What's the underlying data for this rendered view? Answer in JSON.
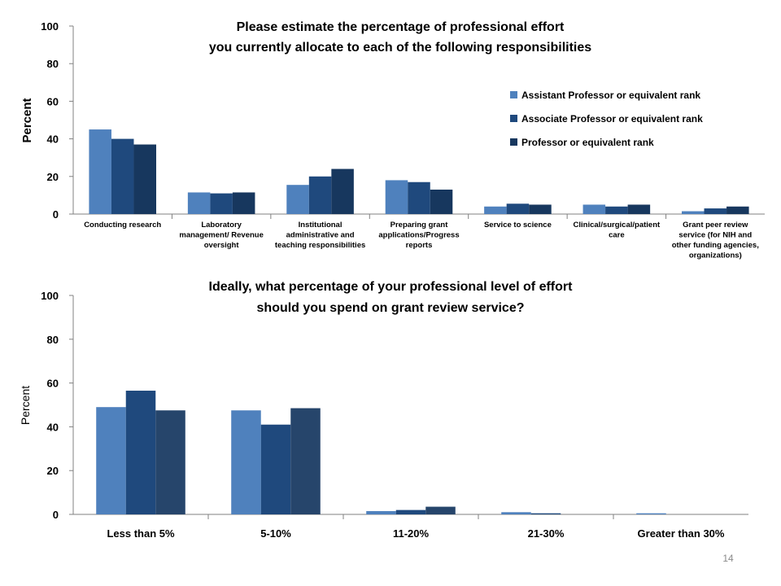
{
  "slide": {
    "page_number": "14"
  },
  "colors": {
    "assistant": "#4f81bd",
    "associate": "#1f497d",
    "professor": "#17375e",
    "professor_chart2": "#26456b"
  },
  "chart_data": [
    {
      "type": "bar",
      "title": "Please estimate the percentage of professional effort",
      "title_line2": "you currently allocate to each of the following responsibilities",
      "ylabel": "Percent",
      "xlabel": "",
      "ylim": [
        0,
        100
      ],
      "yticks": [
        "0",
        "20",
        "40",
        "60",
        "80",
        "100"
      ],
      "legend_position": "right",
      "categories": [
        "Conducting research",
        "Laboratory management/ Revenue oversight",
        "Institutional administrative and teaching responsibilities",
        "Preparing grant applications/Progress reports",
        "Service to science",
        "Clinical/surgical/patient care",
        "Grant peer review service (for NIH and other funding agencies, organizations)"
      ],
      "category_lines": [
        [
          "Conducting research"
        ],
        [
          "Laboratory",
          "management/ Revenue",
          "oversight"
        ],
        [
          "Institutional",
          "administrative and",
          "teaching responsibilities"
        ],
        [
          "Preparing grant",
          "applications/Progress",
          "reports"
        ],
        [
          "Service to science"
        ],
        [
          "Clinical/surgical/patient",
          "care"
        ],
        [
          "Grant peer review",
          "service (for NIH and",
          "other funding agencies,",
          "organizations)"
        ]
      ],
      "series": [
        {
          "name": "Assistant Professor or equivalent rank",
          "values": [
            45,
            11.5,
            15.5,
            18,
            4,
            5,
            1.5
          ]
        },
        {
          "name": "Associate Professor or equivalent rank",
          "values": [
            40,
            11,
            20,
            17,
            5.5,
            4,
            3
          ]
        },
        {
          "name": "Professor or equivalent rank",
          "values": [
            37,
            11.5,
            24,
            13,
            5,
            5,
            4
          ]
        }
      ]
    },
    {
      "type": "bar",
      "title": "Ideally, what percentage of your professional level of effort",
      "title_line2": "should you spend on grant review service?",
      "ylabel": "Percent",
      "xlabel": "",
      "ylim": [
        0,
        100
      ],
      "yticks": [
        "0",
        "20",
        "40",
        "60",
        "80",
        "100"
      ],
      "categories": [
        "Less than 5%",
        "5-10%",
        "11-20%",
        "21-30%",
        "Greater than 30%"
      ],
      "series": [
        {
          "values": [
            49,
            47.5,
            1.5,
            1,
            0.5
          ]
        },
        {
          "values": [
            56.5,
            41,
            2,
            0.5,
            0
          ]
        },
        {
          "values": [
            47.5,
            48.5,
            3.5,
            0,
            0
          ]
        }
      ]
    }
  ]
}
